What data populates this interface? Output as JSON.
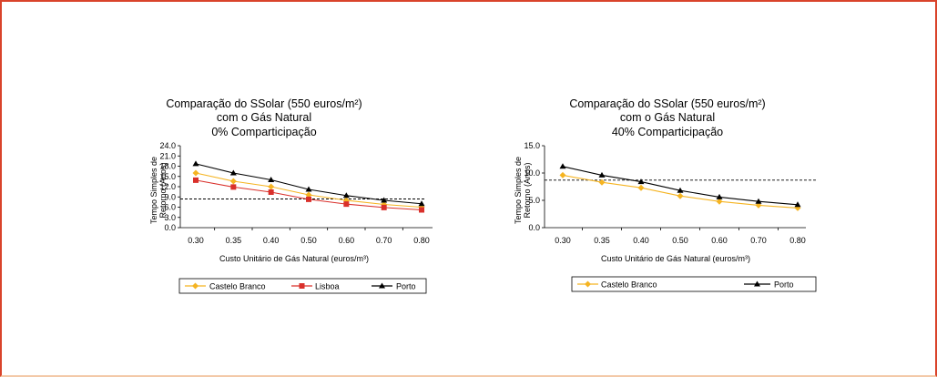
{
  "colors": {
    "frame_border": "#d9432b",
    "castelo_branco": "#f5b422",
    "lisboa": "#d9302b",
    "porto": "#000000"
  },
  "chart_data": [
    {
      "type": "line",
      "title_lines": [
        "Comparação do SSolar (550 euros/m²)",
        "com o Gás Natural",
        "0% Comparticipação"
      ],
      "xlabel": "Custo Unitário de Gás Natural (euros/m³)",
      "ylabel_lines": [
        "Tempo Simples de",
        "Retorno (Anos)"
      ],
      "categories": [
        "0.30",
        "0.35",
        "0.40",
        "0.50",
        "0.60",
        "0.70",
        "0.80"
      ],
      "y_ticks": [
        "0.0",
        "3.0",
        "6.0",
        "9.0",
        "12.0",
        "15.0",
        "18.0",
        "21.0",
        "24.0"
      ],
      "ylim": [
        0,
        24
      ],
      "reference_line": 8.4,
      "series": [
        {
          "name": "Castelo Branco",
          "marker": "diamond",
          "values": [
            16.0,
            13.6,
            12.0,
            9.6,
            8.0,
            6.8,
            6.0
          ]
        },
        {
          "name": "Lisboa",
          "marker": "square",
          "values": [
            13.9,
            11.9,
            10.4,
            8.3,
            6.9,
            5.9,
            5.2
          ]
        },
        {
          "name": "Porto",
          "marker": "triangle",
          "values": [
            18.7,
            16.0,
            14.0,
            11.2,
            9.4,
            8.0,
            7.0
          ]
        }
      ]
    },
    {
      "type": "line",
      "title_lines": [
        "Comparação do SSolar (550 euros/m²)",
        "com o Gás Natural",
        "40% Comparticipação"
      ],
      "xlabel": "Custo Unitário de Gás Natural (euros/m³)",
      "ylabel_lines": [
        "Tempo Simples de",
        "Retorno (Anos)"
      ],
      "categories": [
        "0.30",
        "0.35",
        "0.40",
        "0.50",
        "0.60",
        "0.70",
        "0.80"
      ],
      "y_ticks": [
        "0.0",
        "5.0",
        "10.0",
        "15.0"
      ],
      "ylim": [
        0,
        15
      ],
      "reference_line": 8.7,
      "series": [
        {
          "name": "Castelo Branco",
          "marker": "diamond",
          "values": [
            9.6,
            8.3,
            7.3,
            5.8,
            4.8,
            4.1,
            3.6
          ]
        },
        {
          "name": "Porto",
          "marker": "triangle",
          "values": [
            11.2,
            9.6,
            8.4,
            6.8,
            5.6,
            4.8,
            4.2
          ]
        }
      ]
    }
  ]
}
